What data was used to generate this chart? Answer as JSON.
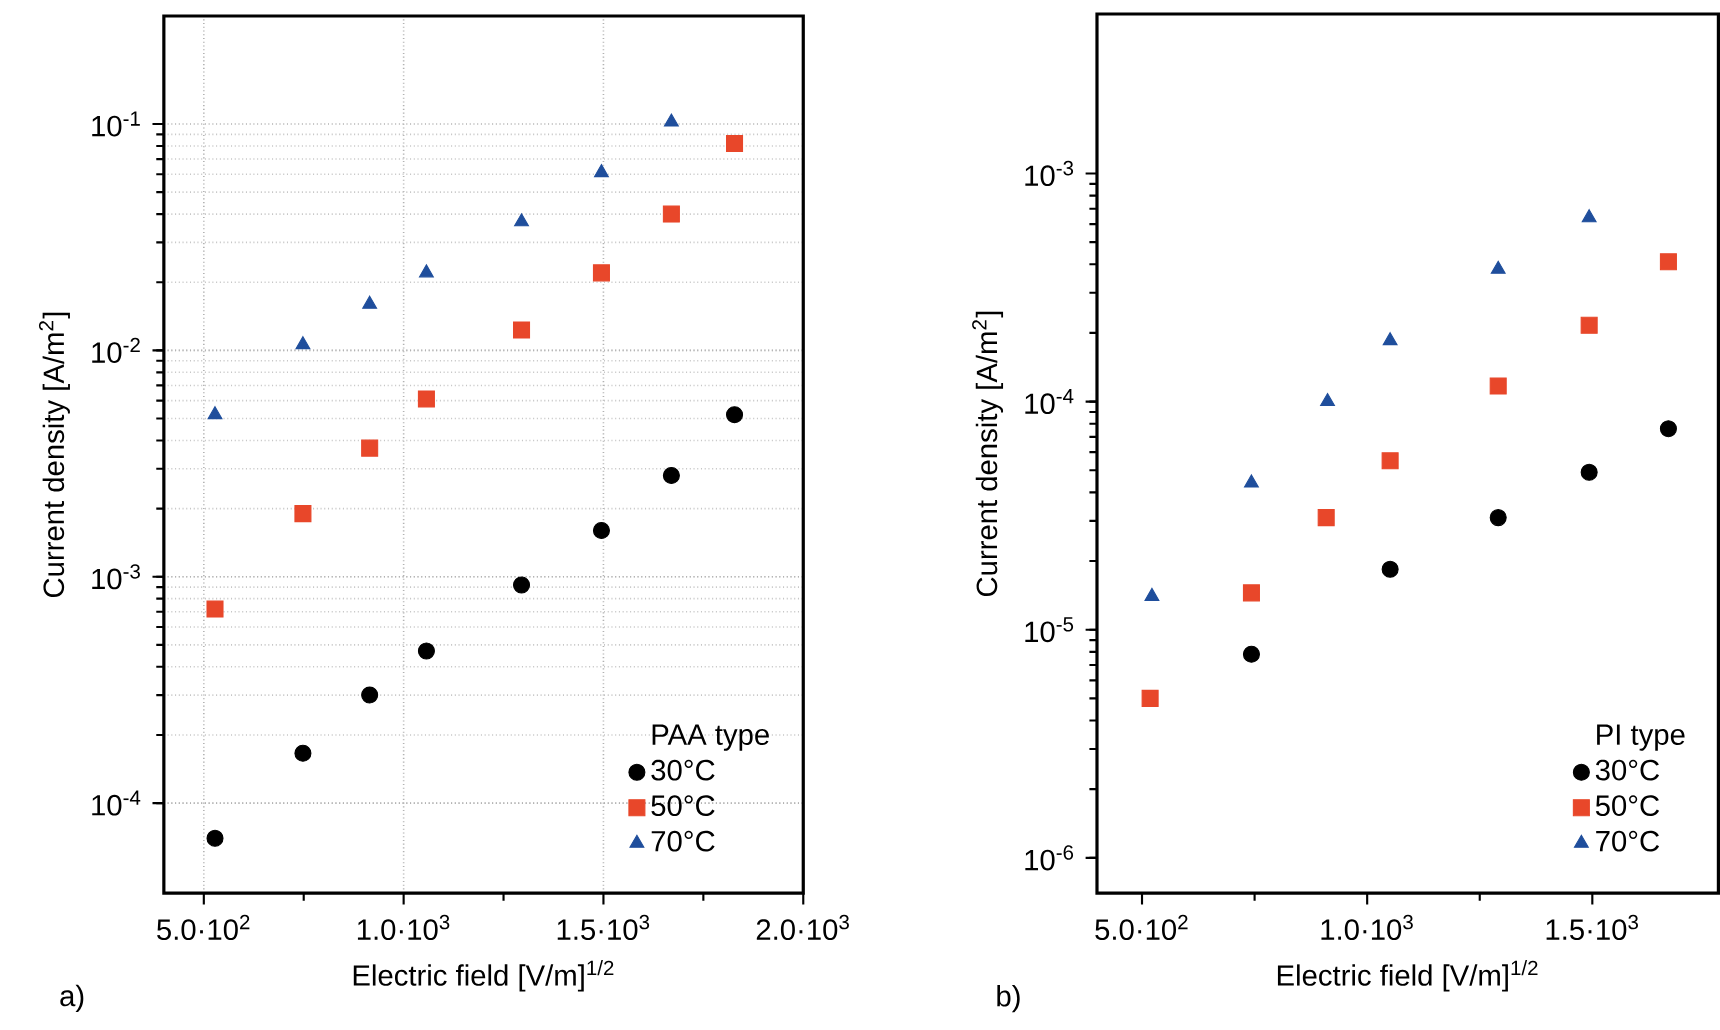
{
  "chart_data": [
    {
      "type": "scatter",
      "xlabel": "Electric field [V/m]$^{1/2}$",
      "ylabel": "Current density [A/m$^{2}$]",
      "legend_title": "PAA type",
      "legend": "bottom right",
      "log": "y",
      "grid": true,
      "xlim": [
        400,
        2000
      ],
      "ylim": [
        4e-05,
        0.3
      ],
      "xticks": [
        {
          "value": 500,
          "label": "5.0·10$^{2}$"
        },
        {
          "value": 1000,
          "label": "1.0·10$^{3}$"
        },
        {
          "value": 1500,
          "label": "1.5·10$^{3}$"
        },
        {
          "value": 2000,
          "label": "2.0·10$^{3}$"
        }
      ],
      "yticks": [
        {
          "value": 0.0001,
          "label": "10$^{-4}$"
        },
        {
          "value": 0.001,
          "label": "10$^{-3}$"
        },
        {
          "value": 0.01,
          "label": "10$^{-2}$"
        },
        {
          "value": 0.1,
          "label": "10$^{-1}$"
        }
      ],
      "annotations": [
        "a)"
      ],
      "series": [
        {
          "name": "30°C",
          "color": "#000000",
          "marker": "circle",
          "x": [
            528,
            748,
            915,
            1057,
            1295,
            1495,
            1670,
            1828
          ],
          "values": [
            7e-05,
            0.000166,
            0.0003,
            0.00047,
            0.00092,
            0.0016,
            0.0028,
            0.0052
          ]
        },
        {
          "name": "50°C",
          "color": "#e8472a",
          "marker": "square",
          "x": [
            528,
            748,
            915,
            1057,
            1295,
            1495,
            1670,
            1828
          ],
          "values": [
            0.00072,
            0.0019,
            0.0037,
            0.0061,
            0.0123,
            0.022,
            0.04,
            0.082
          ]
        },
        {
          "name": "70°C",
          "color": "#1f4e9c",
          "marker": "triangle",
          "x": [
            528,
            748,
            915,
            1057,
            1295,
            1495,
            1670
          ],
          "values": [
            0.0052,
            0.0106,
            0.016,
            0.022,
            0.037,
            0.061,
            0.102
          ]
        }
      ]
    },
    {
      "type": "scatter",
      "xlabel": "Electric field [V/m]$^{1/2}$",
      "ylabel": "Current density [A/m$^{2}$]",
      "legend_title": "PI type",
      "legend": "bottom right",
      "log": "y",
      "xlim": [
        400,
        1780
      ],
      "ylim": [
        7e-07,
        0.005
      ],
      "xticks": [
        {
          "value": 500,
          "label": "5.0·10$^{2}$"
        },
        {
          "value": 1000,
          "label": "1.0·10$^{3}$"
        },
        {
          "value": 1500,
          "label": "1.5·10$^{3}$"
        }
      ],
      "yticks": [
        {
          "value": 1e-06,
          "label": "10$^{-6}$"
        },
        {
          "value": 1e-05,
          "label": "10$^{-5}$"
        },
        {
          "value": 0.0001,
          "label": "10$^{-4}$"
        },
        {
          "value": 0.001,
          "label": "10$^{-3}$"
        }
      ],
      "annotations": [
        "b)"
      ],
      "series": [
        {
          "name": "30°C",
          "color": "#000000",
          "marker": "circle",
          "x": [
            743,
            1051,
            1291,
            1493,
            1669
          ],
          "values": [
            7.8e-06,
            1.84e-05,
            3.1e-05,
            4.9e-05,
            7.6e-05
          ]
        },
        {
          "name": "50°C",
          "color": "#e8472a",
          "marker": "square",
          "x": [
            518,
            743,
            909,
            1051,
            1291,
            1493,
            1669
          ],
          "values": [
            5e-06,
            1.45e-05,
            3.1e-05,
            5.5e-05,
            0.000117,
            0.000216,
            0.00041
          ]
        },
        {
          "name": "70°C",
          "color": "#1f4e9c",
          "marker": "triangle",
          "x": [
            522,
            743,
            912,
            1051,
            1291,
            1493
          ],
          "values": [
            1.4e-05,
            4.4e-05,
            0.0001,
            0.000185,
            0.00038,
            0.00064
          ]
        }
      ]
    }
  ]
}
